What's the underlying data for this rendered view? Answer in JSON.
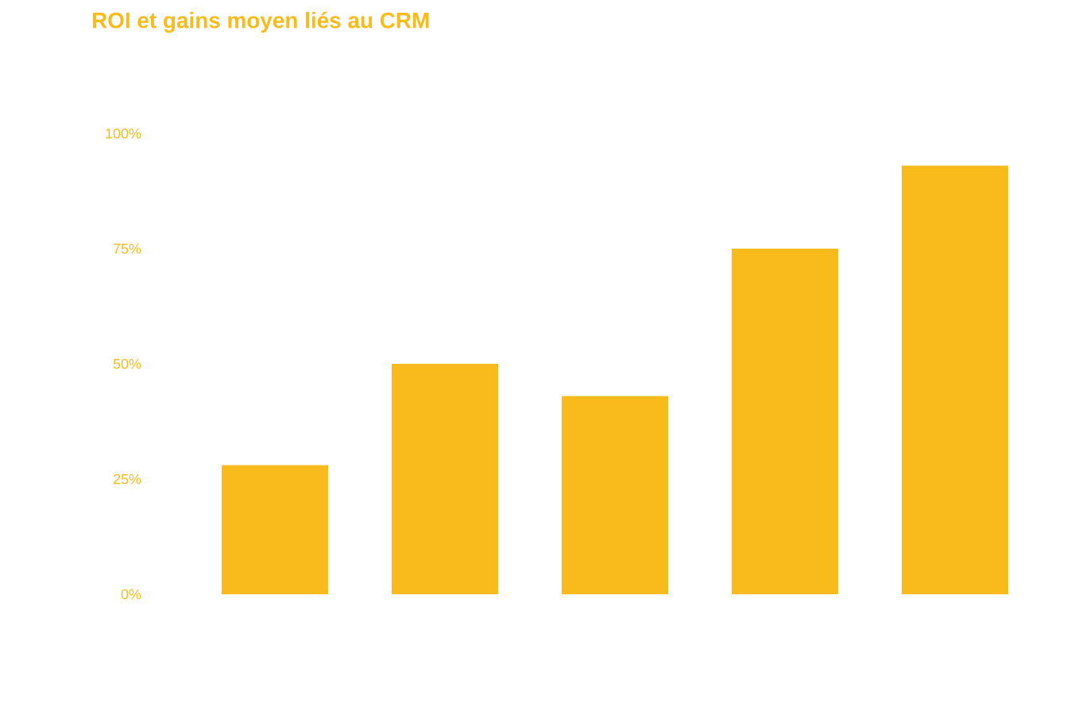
{
  "chart_data": {
    "type": "bar",
    "title": "ROI et gains moyen liés au CRM",
    "categories": [
      null,
      null,
      null,
      null,
      null
    ],
    "values": [
      28,
      50,
      43,
      75,
      93
    ],
    "color": "#f8bb1b",
    "ylim": [
      0,
      100
    ],
    "yticks": [
      {
        "value": 0,
        "label": "0%"
      },
      {
        "value": 25,
        "label": "25%"
      },
      {
        "value": 50,
        "label": "50%"
      },
      {
        "value": 75,
        "label": "75%"
      },
      {
        "value": 100,
        "label": "100%"
      }
    ]
  }
}
